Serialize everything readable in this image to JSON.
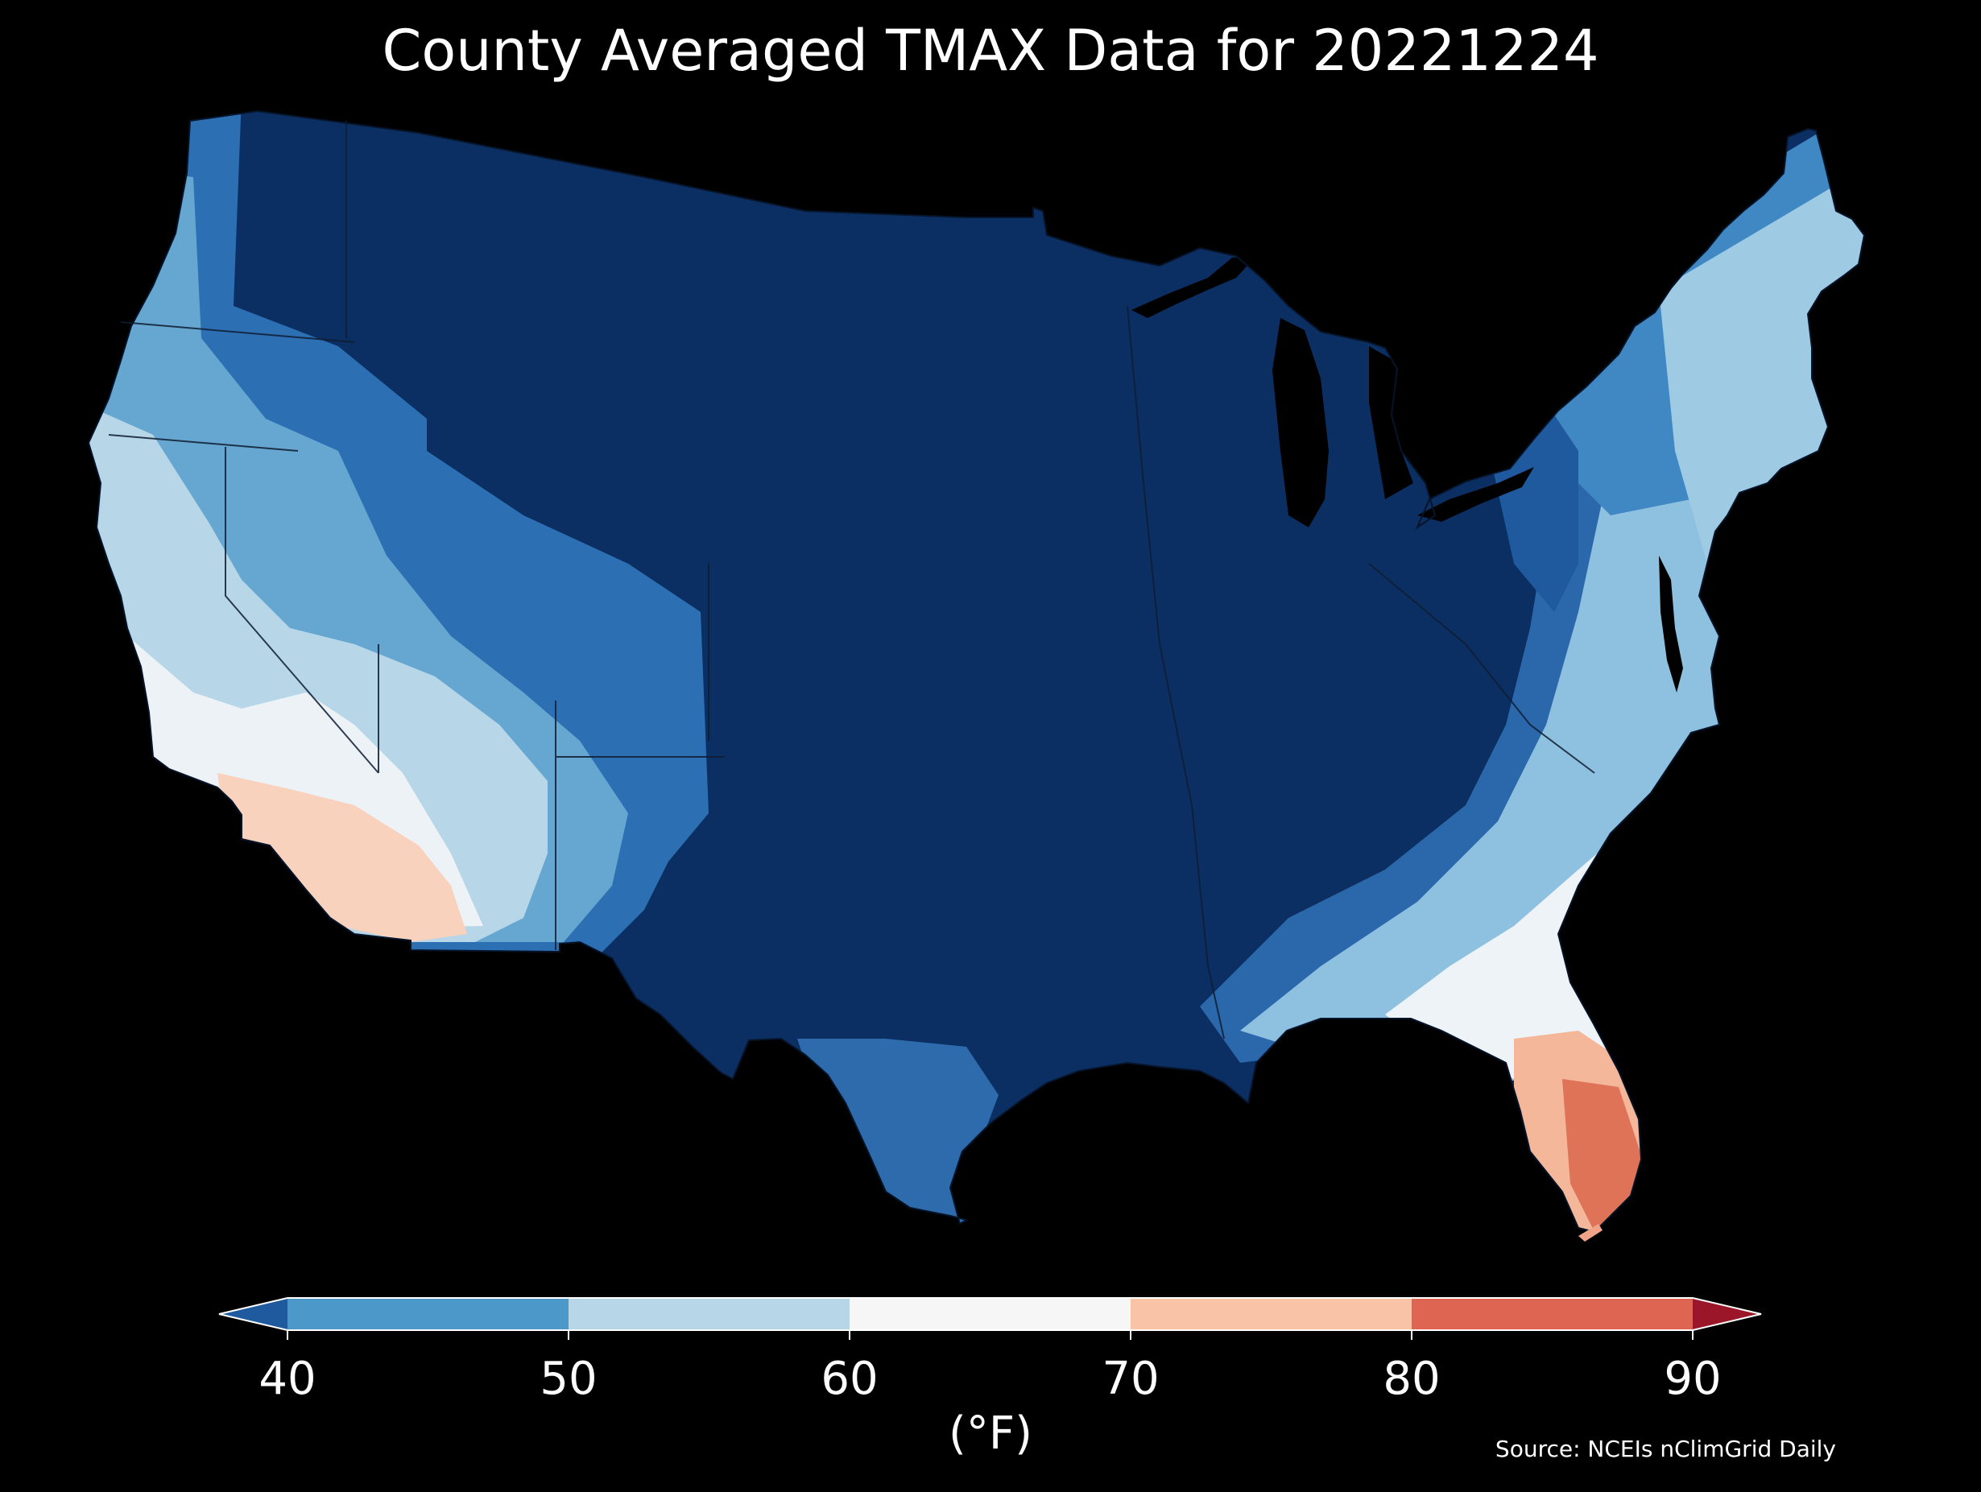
{
  "title": "County Averaged TMAX Data for 20221224",
  "legend": {
    "ticks": [
      "40",
      "50",
      "60",
      "70",
      "80",
      "90"
    ],
    "unit": "(°F)",
    "bins": [
      {
        "from": null,
        "to": 40,
        "color": "#1f5a9e"
      },
      {
        "from": 40,
        "to": 50,
        "color": "#4b98c9"
      },
      {
        "from": 50,
        "to": 60,
        "color": "#b7d6e8"
      },
      {
        "from": 60,
        "to": 70,
        "color": "#f6f6f6"
      },
      {
        "from": 70,
        "to": 80,
        "color": "#f8c3a6"
      },
      {
        "from": 80,
        "to": 90,
        "color": "#dd6552"
      },
      {
        "from": 90,
        "to": null,
        "color": "#9a1628"
      }
    ]
  },
  "source": "Source: NCEIs nClimGrid Daily",
  "colors": {
    "background": "#000000",
    "coldest": "#0b2f62",
    "text": "#ffffff"
  }
}
